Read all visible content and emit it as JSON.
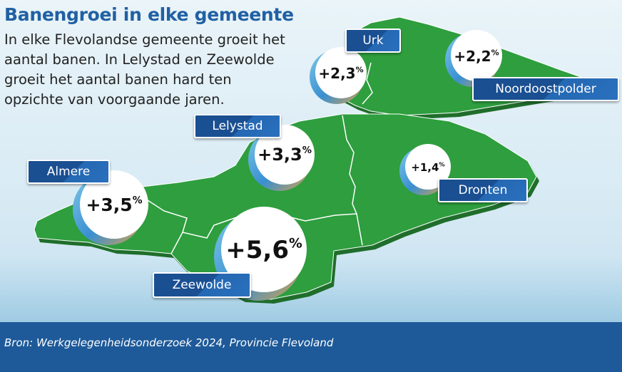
{
  "title": "Banengroei in elke gemeente",
  "intro": "In elke Flevolandse gemeente groeit het aantal banen. In Lelystad en Zeewolde groeit het aantal banen hard ten opzichte van voorgaande jaren.",
  "source": "Bron: Werkgelegenheidsonderzoek 2024, Provincie Flevoland",
  "colors": {
    "land": "#2e9e3e",
    "title": "#2160a3",
    "label_bg": "#1a4f92",
    "footer": "#1e5a99"
  },
  "chart_data": {
    "type": "map",
    "title": "Banengroei in elke gemeente",
    "unit": "%",
    "municipalities": [
      {
        "name": "Urk",
        "value": 2.3,
        "display": "+2,3"
      },
      {
        "name": "Noordoostpolder",
        "value": 2.2,
        "display": "+2,2"
      },
      {
        "name": "Lelystad",
        "value": 3.3,
        "display": "+3,3"
      },
      {
        "name": "Almere",
        "value": 3.5,
        "display": "+3,5"
      },
      {
        "name": "Dronten",
        "value": 1.4,
        "display": "+1,4"
      },
      {
        "name": "Zeewolde",
        "value": 5.6,
        "display": "+5,6"
      }
    ]
  }
}
